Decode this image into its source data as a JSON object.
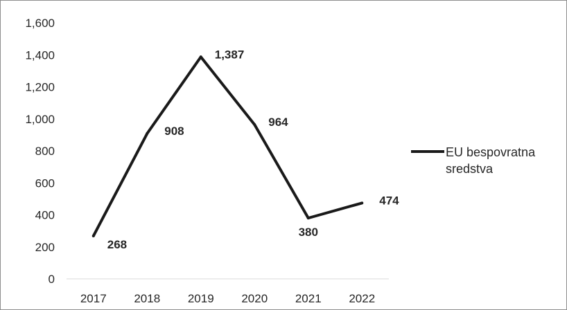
{
  "chart_data": {
    "type": "line",
    "title": "",
    "xlabel": "",
    "ylabel": "",
    "categories": [
      "2017",
      "2018",
      "2019",
      "2020",
      "2021",
      "2022"
    ],
    "series": [
      {
        "name": "EU bespovratna sredstva",
        "values": [
          268,
          908,
          1387,
          964,
          380,
          474
        ],
        "color": "#1a1a1a"
      }
    ],
    "data_labels": [
      "268",
      "908",
      "1,387",
      "964",
      "380",
      "474"
    ],
    "ylim": [
      0,
      1600
    ],
    "yticks": [
      0,
      200,
      400,
      600,
      800,
      1000,
      1200,
      1400,
      1600
    ],
    "ytick_labels": [
      "0",
      "200",
      "400",
      "600",
      "800",
      "1,000",
      "1,200",
      "1,400",
      "1,600"
    ],
    "grid": false,
    "legend": {
      "position": "right",
      "lines": [
        "EU bespovratna",
        "sredstva"
      ]
    }
  }
}
